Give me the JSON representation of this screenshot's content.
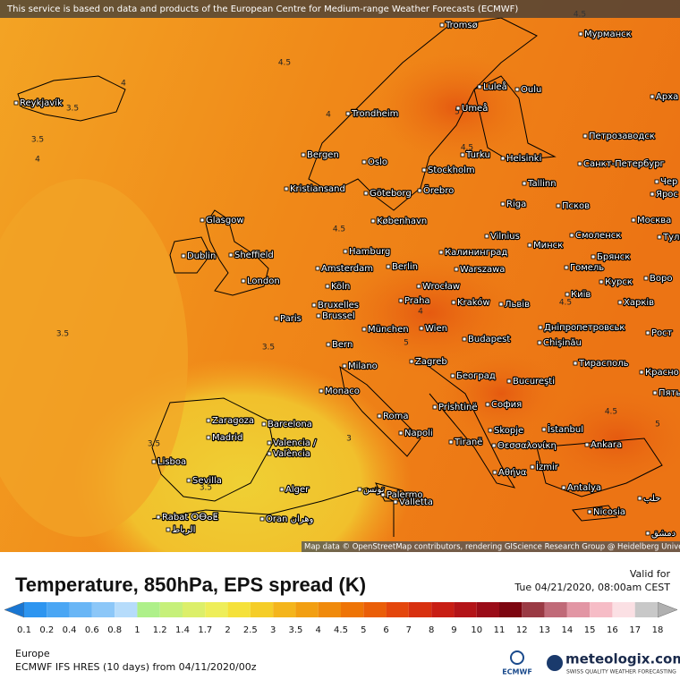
{
  "header": {
    "notice": "This service is based on data and products of the European Centre for Medium-range Weather Forecasts (ECMWF)",
    "attribution": "Map data © OpenStreetMap contributors, rendering GIScience Research Group @ Heidelberg University"
  },
  "map": {
    "city_labels": [
      "Tromsø",
      "Мурманск",
      "Reykjavík",
      "Luleå",
      "Oulu",
      "Арха",
      "Umeå",
      "Trondheim",
      "Петрозаводск",
      "Bergen",
      "Oslo",
      "Turku",
      "Helsinki",
      "Санкт-Петербург",
      "Stockholm",
      "Kristiansand",
      "Göteborg",
      "Örebro",
      "Tallinn",
      "Чер",
      "Ярос",
      "Riga",
      "Псков",
      "Glasgow",
      "København",
      "Москва",
      "Vilnius",
      "Смоленск",
      "Тула",
      "Dublin",
      "Sheffield",
      "Hamburg",
      "Калининград",
      "Минск",
      "Брянск",
      "Amsterdam",
      "Berlin",
      "Warszawa",
      "Гомель",
      "Воро",
      "London",
      "Köln",
      "Wrocław",
      "Київ",
      "Курск",
      "Bruxelles",
      "Praha",
      "Kraków",
      "Львів",
      "Харків",
      "Brussel",
      "Paris",
      "München",
      "Wien",
      "Дніпропетровськ",
      "Рост",
      "Bern",
      "Budapest",
      "Chişinău",
      "Тирасполь",
      "Milano",
      "Zagreb",
      "Београд",
      "Bucureşti",
      "Красно",
      "Monaco",
      "Пять",
      "Zaragoza",
      "Barcelona",
      "Roma",
      "Prishtinë",
      "София",
      "Madrid",
      "Valencia /",
      "València",
      "Napoli",
      "Tiranë",
      "Skopje",
      "İstanbul",
      "Ankara",
      "Θεσσαλονίκη",
      "Lisboa",
      "Sevilla",
      "Palermo",
      "Αθήνα",
      "İzmir",
      "Alger",
      "تونس",
      "Antalya",
      "حلب",
      "Valletta",
      "Rabat ⵔⴱⴰⵟ",
      "الرباط",
      "Oran وهران",
      "Nicosia",
      "دمشق"
    ],
    "contour_labels": [
      4.5,
      4.5,
      4,
      3.5,
      4,
      3.5,
      4,
      5,
      4.5,
      4.5,
      3.5,
      3.5,
      5,
      3.5,
      4.5,
      4.5,
      5,
      3,
      4,
      3.5
    ],
    "title": "Temperature, 850hPa, EPS spread (K)",
    "valid_label": "Valid for",
    "valid_time": "Tue 04/21/2020, 08:00am CEST",
    "colorbar": {
      "ticks": [
        0.1,
        0.2,
        0.4,
        0.6,
        0.8,
        1,
        1.2,
        1.4,
        1.7,
        2,
        2.5,
        3,
        3.5,
        4,
        4.5,
        5,
        6,
        7,
        8,
        9,
        10,
        11,
        12,
        13,
        14,
        15,
        16,
        17,
        18
      ],
      "colors": [
        "#2d95f0",
        "#4aa6f4",
        "#69b6f6",
        "#8cc7f8",
        "#b6dcfb",
        "#aef08a",
        "#c6f07a",
        "#dcef6a",
        "#eeee5a",
        "#f5e13a",
        "#f5cd28",
        "#f4b51c",
        "#f29f12",
        "#f08a0c",
        "#ee7406",
        "#ea5e08",
        "#e4460c",
        "#d8300f",
        "#c81e14",
        "#b31418",
        "#9a0c18",
        "#7d0610",
        "#9a3a44",
        "#c06a78",
        "#e296a4",
        "#f6bcc6",
        "#fbe0e4",
        "#c8c8c8"
      ],
      "under_color": "#1976d2",
      "over_color": "#b0b0b0"
    },
    "region": "Europe",
    "model": "ECMWF IFS HRES (10 days) from 04/11/2020/00z",
    "logo": {
      "ecmwf": "ECMWF",
      "name": "meteologix.com",
      "tagline": "SWISS QUALITY WEATHER FORECASTING"
    }
  }
}
